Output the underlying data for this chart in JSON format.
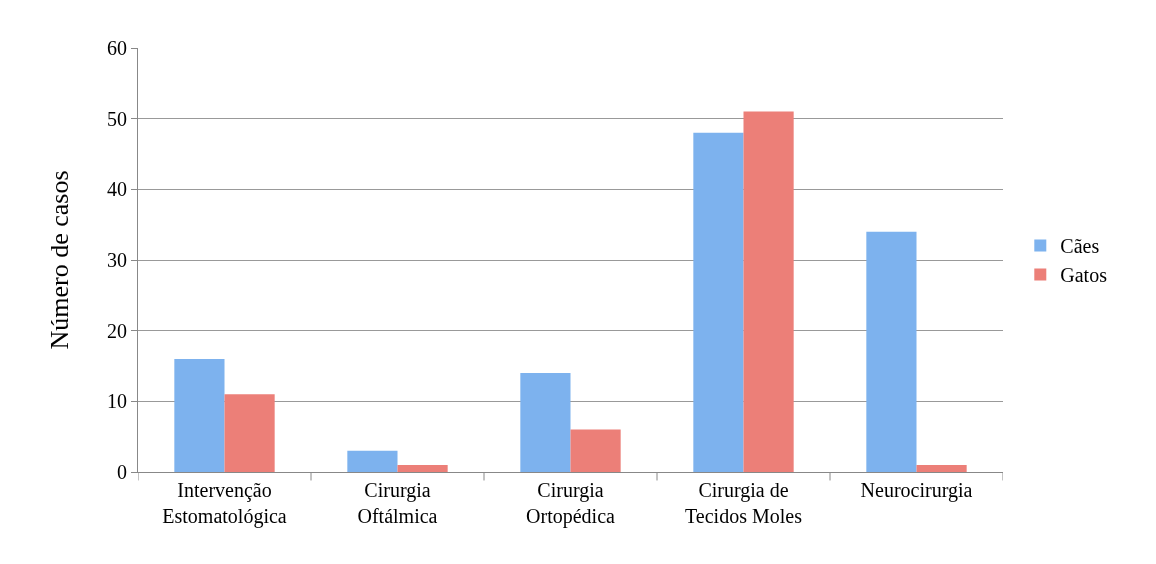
{
  "chart_data": {
    "type": "bar",
    "ylabel": "Número de casos",
    "categories": [
      "Intervenção Estomatológica",
      "Cirurgia Oftálmica",
      "Cirurgia Ortopédica",
      "Cirurgia de Tecidos Moles",
      "Neurocirurgia"
    ],
    "series": [
      {
        "name": "Cães",
        "color": "#7db2ee",
        "values": [
          16,
          3,
          14,
          48,
          34
        ]
      },
      {
        "name": "Gatos",
        "color": "#ec7f78",
        "values": [
          11,
          1,
          6,
          51,
          1
        ]
      }
    ],
    "ylim": [
      0,
      60
    ],
    "yticks": [
      0,
      10,
      20,
      30,
      40,
      50,
      60
    ],
    "grid": "y",
    "legend": "right"
  }
}
